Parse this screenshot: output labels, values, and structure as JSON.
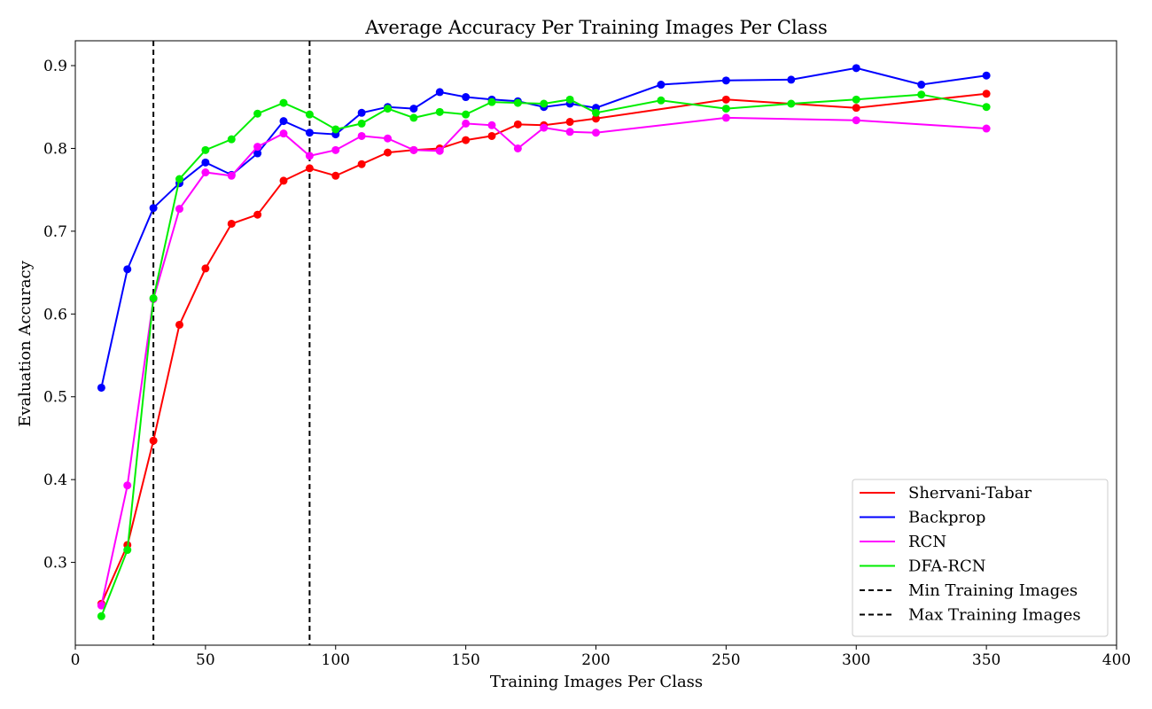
{
  "chart_data": {
    "type": "line",
    "title": "Average Accuracy Per Training Images Per Class",
    "xlabel": "Training Images Per Class",
    "ylabel": "Evaluation Accuracy",
    "xlim": [
      0,
      400
    ],
    "ylim": [
      0.2,
      0.93
    ],
    "xticks": [
      0,
      50,
      100,
      150,
      200,
      250,
      300,
      350,
      400
    ],
    "yticks": [
      0.3,
      0.4,
      0.5,
      0.6,
      0.7,
      0.8,
      0.9
    ],
    "xtick_labels": [
      "0",
      "50",
      "100",
      "150",
      "200",
      "250",
      "300",
      "350",
      "400"
    ],
    "ytick_labels": [
      "0.3",
      "0.4",
      "0.5",
      "0.6",
      "0.7",
      "0.8",
      "0.9"
    ],
    "grid": false,
    "legend_position": "bottom-right",
    "series": [
      {
        "name": "Shervani-Tabar",
        "color": "#ff0000",
        "x": [
          10,
          20,
          30,
          40,
          50,
          60,
          70,
          80,
          90,
          100,
          110,
          120,
          130,
          140,
          150,
          160,
          170,
          180,
          190,
          200,
          250,
          300,
          350
        ],
        "values": [
          0.25,
          0.321,
          0.447,
          0.587,
          0.655,
          0.709,
          0.72,
          0.761,
          0.776,
          0.767,
          0.781,
          0.795,
          0.798,
          0.8,
          0.81,
          0.815,
          0.829,
          0.828,
          0.832,
          0.836,
          0.859,
          0.849,
          0.866
        ]
      },
      {
        "name": "Backprop",
        "color": "#0000ff",
        "x": [
          10,
          20,
          30,
          40,
          50,
          60,
          70,
          80,
          90,
          100,
          110,
          120,
          130,
          140,
          150,
          160,
          170,
          180,
          190,
          200,
          225,
          250,
          275,
          300,
          325,
          350
        ],
        "values": [
          0.511,
          0.654,
          0.728,
          0.758,
          0.783,
          0.768,
          0.794,
          0.833,
          0.819,
          0.817,
          0.843,
          0.85,
          0.848,
          0.868,
          0.862,
          0.859,
          0.857,
          0.85,
          0.854,
          0.849,
          0.877,
          0.882,
          0.883,
          0.897,
          0.877,
          0.888
        ]
      },
      {
        "name": "RCN",
        "color": "#ff00ff",
        "x": [
          10,
          20,
          30,
          40,
          50,
          60,
          70,
          80,
          90,
          100,
          110,
          120,
          130,
          140,
          150,
          160,
          170,
          180,
          190,
          200,
          250,
          300,
          350
        ],
        "values": [
          0.248,
          0.393,
          0.618,
          0.727,
          0.771,
          0.767,
          0.802,
          0.818,
          0.791,
          0.798,
          0.815,
          0.812,
          0.798,
          0.797,
          0.83,
          0.828,
          0.8,
          0.825,
          0.82,
          0.819,
          0.837,
          0.834,
          0.824
        ]
      },
      {
        "name": "DFA-RCN",
        "color": "#00ee00",
        "x": [
          10,
          20,
          30,
          40,
          50,
          60,
          70,
          80,
          90,
          100,
          110,
          120,
          130,
          140,
          150,
          160,
          170,
          180,
          190,
          200,
          225,
          250,
          275,
          300,
          325,
          350
        ],
        "values": [
          0.235,
          0.315,
          0.619,
          0.763,
          0.798,
          0.811,
          0.842,
          0.855,
          0.841,
          0.823,
          0.83,
          0.848,
          0.837,
          0.844,
          0.841,
          0.856,
          0.855,
          0.854,
          0.859,
          0.843,
          0.858,
          0.848,
          0.854,
          0.859,
          0.865,
          0.85
        ]
      }
    ],
    "vlines": [
      {
        "name": "Min Training Images",
        "x": 30,
        "color": "#000000",
        "style": "dashed"
      },
      {
        "name": "Max Training Images",
        "x": 90,
        "color": "#000000",
        "style": "dashed"
      }
    ]
  }
}
